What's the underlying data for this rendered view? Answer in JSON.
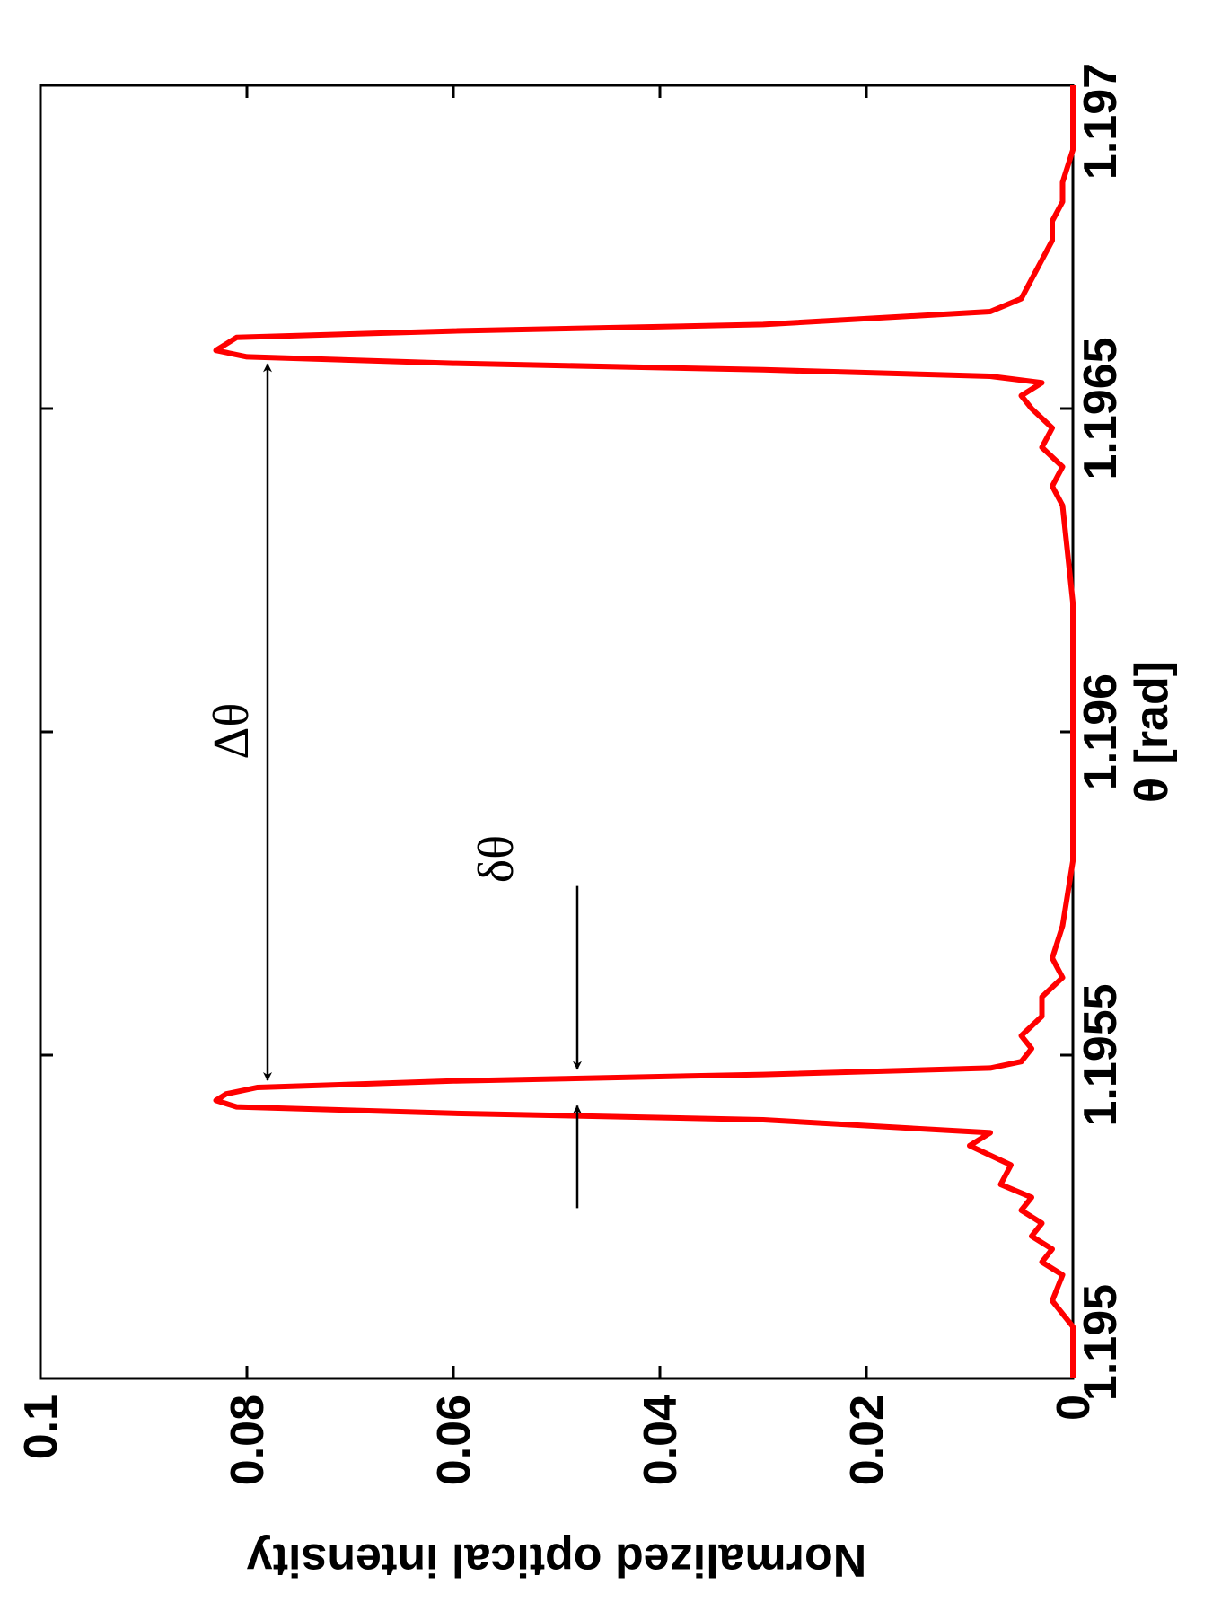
{
  "chart_data": {
    "type": "line",
    "orientation": "rotated-90-clockwise",
    "xlabel": "θ [rad]",
    "ylabel": "Normalized optical intensity",
    "xlim": [
      1.195,
      1.197
    ],
    "ylim": [
      0,
      0.1
    ],
    "x_ticks": [
      1.195,
      1.1955,
      1.196,
      1.1965,
      1.197
    ],
    "x_tick_labels": [
      "1.195",
      "1.1955",
      "1.196",
      "1.1965",
      "1.197"
    ],
    "y_ticks": [
      0,
      0.02,
      0.04,
      0.06,
      0.08,
      0.1
    ],
    "y_tick_labels": [
      "0",
      "0.02",
      "0.04",
      "0.06",
      "0.08",
      "0.1"
    ],
    "grid": false,
    "series_color": "#ff0000",
    "series": [
      {
        "x": [
          1.195,
          1.19508,
          1.19512,
          1.19516,
          1.19518,
          1.1952,
          1.19522,
          1.19524,
          1.19526,
          1.19528,
          1.1953,
          1.19533,
          1.19536,
          1.19538,
          1.1954,
          1.19541,
          1.19542,
          1.19543,
          1.19544,
          1.19545,
          1.19546,
          1.19547,
          1.19548,
          1.19549,
          1.19551,
          1.19553,
          1.19556,
          1.19559,
          1.19562,
          1.19565,
          1.1957,
          1.1958,
          1.196,
          1.1962,
          1.19635,
          1.19638,
          1.19641,
          1.19644,
          1.19647,
          1.1965,
          1.19652,
          1.19654,
          1.19655,
          1.19656,
          1.19657,
          1.19658,
          1.19659,
          1.1966,
          1.19661,
          1.19662,
          1.19663,
          1.19665,
          1.19667,
          1.1967,
          1.19673,
          1.19676,
          1.19679,
          1.19682,
          1.19685,
          1.1969,
          1.197
        ],
        "y": [
          0,
          0,
          0.002,
          0.001,
          0.003,
          0.002,
          0.004,
          0.003,
          0.005,
          0.004,
          0.007,
          0.006,
          0.01,
          0.008,
          0.03,
          0.06,
          0.081,
          0.083,
          0.082,
          0.079,
          0.06,
          0.03,
          0.008,
          0.005,
          0.004,
          0.005,
          0.003,
          0.003,
          0.001,
          0.002,
          0.001,
          0,
          0,
          0,
          0.001,
          0.002,
          0.001,
          0.003,
          0.002,
          0.004,
          0.005,
          0.003,
          0.008,
          0.03,
          0.06,
          0.08,
          0.083,
          0.082,
          0.081,
          0.06,
          0.03,
          0.008,
          0.005,
          0.004,
          0.003,
          0.002,
          0.002,
          0.001,
          0.001,
          0,
          0
        ]
      }
    ],
    "annotations": [
      {
        "text": "Δθ",
        "type": "double-arrow",
        "from_x": 1.19545,
        "to_x": 1.19658,
        "y": 0.078
      },
      {
        "text": "δθ",
        "type": "inward-arrows",
        "x1": 1.19543,
        "x2": 1.19547,
        "y": 0.048
      }
    ]
  }
}
